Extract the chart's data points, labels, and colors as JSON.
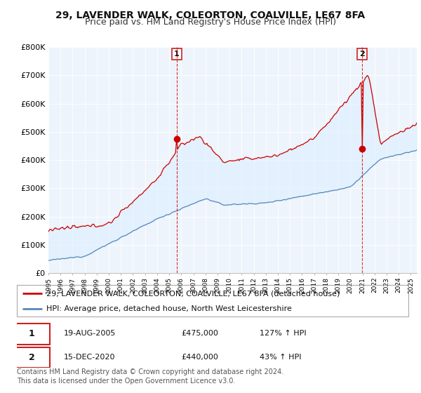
{
  "title": "29, LAVENDER WALK, COLEORTON, COALVILLE, LE67 8FA",
  "subtitle": "Price paid vs. HM Land Registry's House Price Index (HPI)",
  "ylim": [
    0,
    800000
  ],
  "yticks": [
    0,
    100000,
    200000,
    300000,
    400000,
    500000,
    600000,
    700000,
    800000
  ],
  "ytick_labels": [
    "£0",
    "£100K",
    "£200K",
    "£300K",
    "£400K",
    "£500K",
    "£600K",
    "£700K",
    "£800K"
  ],
  "red_color": "#cc0000",
  "blue_color": "#5588bb",
  "fill_color": "#ddeeff",
  "bg_color": "#eef4fb",
  "marker1_date": 2005.63,
  "marker1_value": 475000,
  "marker2_date": 2020.96,
  "marker2_value": 440000,
  "legend_line1": "29, LAVENDER WALK, COLEORTON, COALVILLE, LE67 8FA (detached house)",
  "legend_line2": "HPI: Average price, detached house, North West Leicestershire",
  "table_row1": [
    "1",
    "19-AUG-2005",
    "£475,000",
    "127% ↑ HPI"
  ],
  "table_row2": [
    "2",
    "15-DEC-2020",
    "£440,000",
    "43% ↑ HPI"
  ],
  "footer": "Contains HM Land Registry data © Crown copyright and database right 2024.\nThis data is licensed under the Open Government Licence v3.0.",
  "title_fontsize": 10,
  "subtitle_fontsize": 9,
  "axis_fontsize": 8,
  "legend_fontsize": 8,
  "table_fontsize": 8,
  "footer_fontsize": 7
}
